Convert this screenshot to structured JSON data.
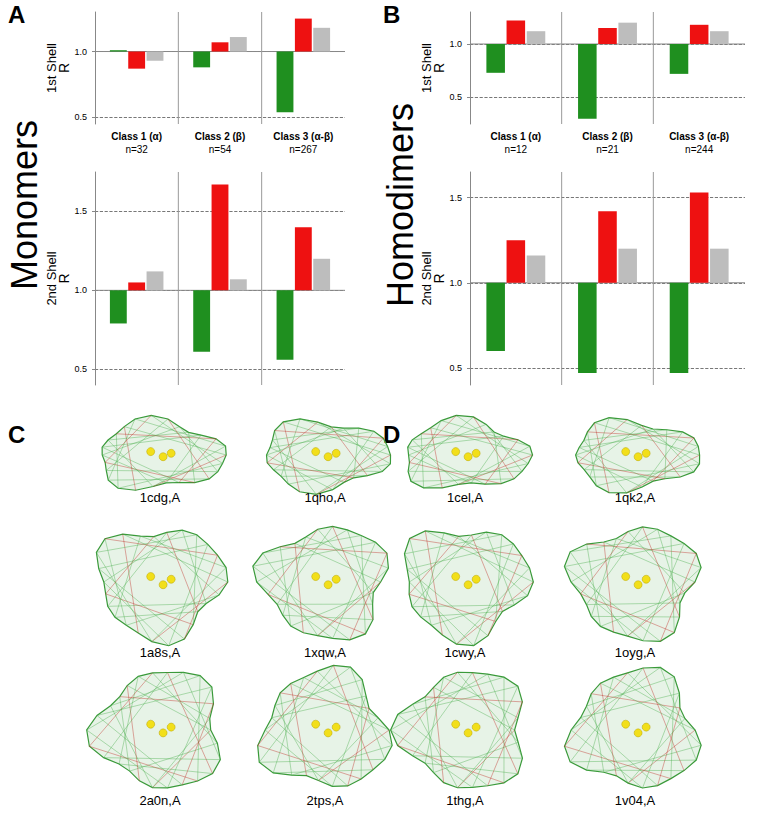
{
  "chart_data": [
    {
      "type": "bar",
      "shell": "1st Shell",
      "ylabel": "R",
      "categories": [
        "Class 1 (α)",
        "Class 2 (β)",
        "Class 3 (α-β)"
      ],
      "sublabels": [
        "n=32",
        "n=54",
        "n=267"
      ],
      "baseline": 1,
      "ylim": [
        0.45,
        1.3
      ],
      "yticks": [
        0.5,
        {
          "value": 1,
          "label": "1.0"
        }
      ],
      "grid": true,
      "series": [
        {
          "color": "#1f8f1f",
          "values": [
            1.01,
            0.88,
            0.54
          ]
        },
        {
          "color": "#ee1111",
          "values": [
            0.87,
            1.07,
            1.25
          ]
        },
        {
          "color": "#bdbdbd",
          "values": [
            0.93,
            1.11,
            1.18
          ]
        }
      ]
    },
    {
      "type": "bar",
      "shell": "2nd Shell",
      "ylabel": "R",
      "categories": [
        null,
        null,
        null
      ],
      "baseline": 1,
      "ylim": [
        0.4,
        1.75
      ],
      "yticks": [
        0.5,
        {
          "value": 1,
          "label": "1.0"
        },
        1.5
      ],
      "grid": true,
      "series": [
        {
          "color": "#1f8f1f",
          "values": [
            0.79,
            0.61,
            0.56
          ]
        },
        {
          "color": "#ee1111",
          "values": [
            1.05,
            1.67,
            1.4
          ]
        },
        {
          "color": "#bdbdbd",
          "values": [
            1.12,
            1.07,
            1.2
          ]
        }
      ]
    },
    {
      "type": "bar",
      "shell": "1st Shell",
      "ylabel": "R",
      "categories": [
        "Class 1 (α)",
        "Class 2 (β)",
        "Class 3 (α-β)"
      ],
      "sublabels": [
        "n=12",
        "n=21",
        "n=244"
      ],
      "baseline": 1,
      "ylim": [
        0.25,
        1.3
      ],
      "yticks": [
        0.5,
        {
          "value": 1,
          "label": "1.0"
        }
      ],
      "grid": true,
      "series": [
        {
          "color": "#1f8f1f",
          "values": [
            0.73,
            0.3,
            0.72
          ]
        },
        {
          "color": "#ee1111",
          "values": [
            1.22,
            1.15,
            1.18
          ]
        },
        {
          "color": "#bdbdbd",
          "values": [
            1.12,
            1.2,
            1.12
          ]
        }
      ]
    },
    {
      "type": "bar",
      "shell": "2nd Shell",
      "ylabel": "R",
      "categories": [
        null,
        null,
        null
      ],
      "baseline": 1,
      "ylim": [
        0.4,
        1.65
      ],
      "yticks": [
        0.5,
        {
          "value": 1,
          "label": "1.0"
        },
        1.5
      ],
      "grid": true,
      "series": [
        {
          "color": "#1f8f1f",
          "values": [
            0.6,
            0.47,
            0.47
          ]
        },
        {
          "color": "#ee1111",
          "values": [
            1.25,
            1.42,
            1.53
          ]
        },
        {
          "color": "#bdbdbd",
          "values": [
            1.16,
            1.2,
            1.2
          ]
        }
      ]
    }
  ],
  "panel_labels": [
    "A",
    "B",
    "C",
    "D"
  ],
  "group_labels": [
    "Monomers",
    "Homodimers"
  ],
  "structure_labels": {
    "C": [
      "1cdg,A",
      "1qho,A",
      "1a8s,A",
      "1xqw,A",
      "2a0n,A",
      "2tps,A"
    ],
    "D": [
      "1cel,A",
      "1qk2,A",
      "1cwy,A",
      "1oyg,A",
      "1thg,A",
      "1v04,A"
    ]
  }
}
